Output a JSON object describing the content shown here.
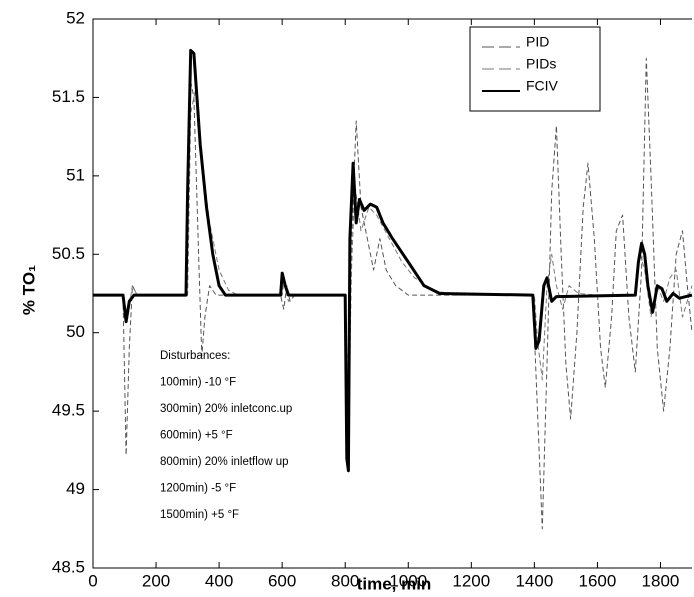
{
  "chart_data": {
    "type": "line",
    "x_label": "time, min",
    "y_label": "% TO₁",
    "xlim": [
      0,
      1900
    ],
    "xticks": [
      0,
      200,
      400,
      600,
      800,
      1000,
      1200,
      1400,
      1600,
      1800
    ],
    "ylim": [
      48.5,
      52
    ],
    "yticks": [
      48.5,
      49,
      49.5,
      50,
      50.5,
      51,
      51.5,
      52
    ],
    "legend": "top-right",
    "annotations": [
      "Disturbances:",
      "100min) -10 °F",
      "300min) 20% inletconc.up",
      "600min) +5 °F",
      "800min) 20% inletflow up",
      "1200min) -5 °F",
      "1500min) +5 °F"
    ],
    "series": [
      {
        "name": "PID",
        "color": "#555555",
        "line_style": "dashed",
        "width": 1,
        "x": [
          0,
          95,
          105,
          115,
          125,
          140,
          295,
          310,
          320,
          335,
          345,
          355,
          370,
          390,
          595,
          605,
          615,
          625,
          640,
          800,
          812,
          820,
          835,
          850,
          870,
          890,
          910,
          930,
          960,
          1000,
          1395,
          1410,
          1425,
          1440,
          1455,
          1470,
          1485,
          1500,
          1515,
          1535,
          1555,
          1570,
          1590,
          1610,
          1625,
          1645,
          1660,
          1680,
          1700,
          1720,
          1740,
          1755,
          1770,
          1790,
          1810,
          1830,
          1850,
          1870,
          1885,
          1900
        ],
        "values": [
          50.24,
          50.24,
          49.22,
          49.9,
          50.3,
          50.24,
          50.24,
          51.6,
          51.5,
          50.5,
          49.85,
          50.1,
          50.3,
          50.24,
          50.24,
          50.15,
          50.3,
          50.2,
          50.24,
          50.24,
          49.3,
          50.6,
          51.35,
          50.8,
          50.6,
          50.4,
          50.6,
          50.4,
          50.3,
          50.24,
          50.24,
          49.5,
          48.75,
          49.8,
          50.9,
          51.32,
          50.5,
          49.8,
          49.45,
          50.0,
          50.8,
          51.08,
          50.6,
          49.9,
          49.65,
          50.1,
          50.65,
          50.75,
          50.1,
          49.75,
          50.4,
          51.75,
          51.0,
          49.9,
          49.5,
          49.9,
          50.5,
          50.65,
          50.3,
          50.0
        ]
      },
      {
        "name": "PIDs",
        "color": "#777777",
        "line_style": "dashed",
        "width": 1,
        "x": [
          0,
          95,
          110,
          125,
          140,
          300,
          310,
          325,
          345,
          370,
          400,
          430,
          460,
          600,
          605,
          620,
          640,
          800,
          810,
          820,
          830,
          850,
          875,
          900,
          940,
          980,
          1020,
          1080,
          1150,
          1400,
          1410,
          1425,
          1440,
          1455,
          1470,
          1490,
          1510,
          1540,
          1600,
          1720,
          1735,
          1750,
          1770,
          1790,
          1810,
          1830,
          1850,
          1870,
          1900
        ],
        "values": [
          50.24,
          50.24,
          50.1,
          50.3,
          50.24,
          50.24,
          51.4,
          51.55,
          51.1,
          50.7,
          50.4,
          50.27,
          50.24,
          50.24,
          50.32,
          50.2,
          50.24,
          50.24,
          49.5,
          50.4,
          50.95,
          50.65,
          50.8,
          50.75,
          50.6,
          50.45,
          50.35,
          50.27,
          50.24,
          50.24,
          49.95,
          49.7,
          50.3,
          50.5,
          50.3,
          50.15,
          50.3,
          50.25,
          50.24,
          50.24,
          50.5,
          50.4,
          50.1,
          50.3,
          50.2,
          50.35,
          50.4,
          50.1,
          50.3
        ]
      },
      {
        "name": "FCIV",
        "color": "#000000",
        "line_style": "solid",
        "width": 3,
        "x": [
          0,
          95,
          105,
          115,
          130,
          295,
          300,
          310,
          320,
          340,
          360,
          380,
          400,
          420,
          595,
          600,
          610,
          620,
          800,
          805,
          810,
          815,
          825,
          835,
          845,
          860,
          880,
          900,
          920,
          950,
          1000,
          1050,
          1100,
          1395,
          1405,
          1415,
          1430,
          1440,
          1455,
          1470,
          1720,
          1730,
          1740,
          1750,
          1760,
          1775,
          1790,
          1805,
          1820,
          1840,
          1860,
          1900
        ],
        "values": [
          50.24,
          50.24,
          50.07,
          50.2,
          50.24,
          50.24,
          50.9,
          51.8,
          51.78,
          51.2,
          50.8,
          50.5,
          50.3,
          50.24,
          50.24,
          50.38,
          50.3,
          50.24,
          50.24,
          49.2,
          49.12,
          50.6,
          51.08,
          50.7,
          50.85,
          50.78,
          50.82,
          50.8,
          50.7,
          50.6,
          50.45,
          50.3,
          50.25,
          50.24,
          49.9,
          49.95,
          50.3,
          50.35,
          50.2,
          50.23,
          50.24,
          50.45,
          50.57,
          50.5,
          50.3,
          50.13,
          50.3,
          50.28,
          50.2,
          50.25,
          50.22,
          50.24
        ]
      }
    ]
  }
}
